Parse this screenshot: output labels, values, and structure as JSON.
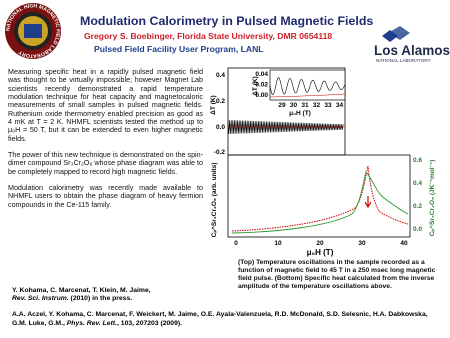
{
  "header": {
    "title": "Modulation Calorimetry in Pulsed Magnetic Fields",
    "author": "Gregory S. Boebinger, Florida State University, DMR 0654118",
    "program": "Pulsed Field Facility User Program, LANL"
  },
  "logos": {
    "nhmfl": "NATIONAL HIGH MAGNETIC FIELD LABORATORY",
    "lanl": "Los Alamos",
    "lanl_sub": "NATIONAL LABORATORY"
  },
  "body": {
    "paragraphs": [
      "Measuring specific heat in a rapidly pulsed magnetic field was thought to be virtually impossible; however Magnet Lab scientists recently demonstrated a rapid temperature modulation technique for heat capacity and magnetocaloric measurements of small samples in pulsed magnetic fields. Ruthenium oxide thermometry enabled precision as good as 4 mK at T = 2 K.  NHMFL scientists tested the method up to μ₀H = 50 T, but it can be extended to even higher magnetic fields.",
      "The power of this new technique is demonstrated on the spin-dimer compound Sr₃Cr₂O₈ whose phase diagram was able to be completely mapped to record high magnetic fields.",
      "Modulation calorimetry was recently made available to NHMFL users to obtain the phase diagram of heavy fermion compounds in the Ce-115 family."
    ]
  },
  "figure": {
    "top": {
      "ylabel": "ΔT (K)",
      "yticks": [
        "0.4",
        "0.2",
        "0.0",
        "-0.2"
      ]
    },
    "inset": {
      "ylabel": "ΔT (K)",
      "xlabel": "μ₀H (T)",
      "yticks": [
        "0.04",
        "0.02",
        "0.00"
      ],
      "xticks": [
        "29",
        "30",
        "31",
        "32",
        "33",
        "34"
      ]
    },
    "bottom": {
      "ylabel": "Cₚ^Sr₃Cr₂O₈ (arb. units)",
      "y2label": "Cₚ^Sr₃Cr₂O₈ (JK⁻¹mol⁻¹)",
      "y2ticks": [
        "0.6",
        "0.4",
        "0.2",
        "0.0"
      ],
      "xticks": [
        "0",
        "10",
        "20",
        "30",
        "40"
      ],
      "xlabel": "μ₀H (T)"
    },
    "caption": "(Top) Temperature oscillations in the sample recorded as a function of magnetic field to 45 T in a 250 msec long magnetic field pulse. (Bottom) Specific heat calculated from the inverse amplitude of the temperature oscillations above."
  },
  "references": [
    {
      "authors": "Y. Kohama, C. Marcenat,  T. Klein, M. Jaime,",
      "journal": "Rev. Sci. Instrum.",
      "rest": " (2010) in the press."
    },
    {
      "authors": "A.A. Aczel, Y. Kohama, C. Marcenat, F. Weickert, M. Jaime, O.E. Ayala-Valenzuela, R.D. McDonald, S.D. Selesnic, H.A. Dabkowska, G.M.  Luke, G.M., ",
      "journal": "Phys. Rev. Lett.",
      "rest": ", 103, 207203 (2009)."
    }
  ]
}
